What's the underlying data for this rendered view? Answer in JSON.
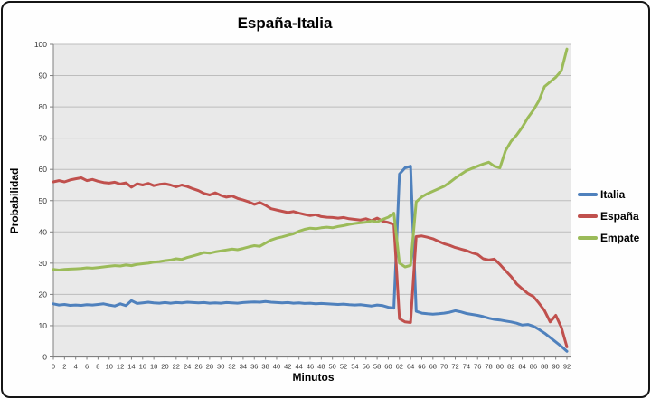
{
  "window": {
    "border_color": "#151515",
    "background": "#fefefe"
  },
  "chart_data": {
    "type": "line",
    "title": "España-Italia",
    "xlabel": "Minutos",
    "ylabel": "Probabilidad",
    "x_range": [
      0,
      92
    ],
    "x_tick_step": 2,
    "ylim": [
      0,
      100
    ],
    "y_tick_step": 10,
    "grid": "horizontal",
    "legend_position": "right",
    "plot_bg": "#E9E9E9",
    "grid_color": "#BDBDBD",
    "axis_color": "#808080",
    "tick_label_color": "#333333",
    "x": [
      0,
      1,
      2,
      3,
      4,
      5,
      6,
      7,
      8,
      9,
      10,
      11,
      12,
      13,
      14,
      15,
      16,
      17,
      18,
      19,
      20,
      21,
      22,
      23,
      24,
      25,
      26,
      27,
      28,
      29,
      30,
      31,
      32,
      33,
      34,
      35,
      36,
      37,
      38,
      39,
      40,
      41,
      42,
      43,
      44,
      45,
      46,
      47,
      48,
      49,
      50,
      51,
      52,
      53,
      54,
      55,
      56,
      57,
      58,
      59,
      60,
      61,
      62,
      63,
      64,
      65,
      66,
      67,
      68,
      69,
      70,
      71,
      72,
      73,
      74,
      75,
      76,
      77,
      78,
      79,
      80,
      81,
      82,
      83,
      84,
      85,
      86,
      87,
      88,
      89,
      90,
      91,
      92
    ],
    "series": [
      {
        "name": "Italia",
        "color": "#4F81BD",
        "values": [
          17,
          16.6,
          16.8,
          16.5,
          16.6,
          16.5,
          16.7,
          16.6,
          16.8,
          17,
          16.6,
          16.3,
          17,
          16.4,
          18,
          17.1,
          17.3,
          17.5,
          17.3,
          17.2,
          17.4,
          17.2,
          17.4,
          17.3,
          17.5,
          17.4,
          17.3,
          17.4,
          17.2,
          17.3,
          17.2,
          17.4,
          17.3,
          17.2,
          17.4,
          17.5,
          17.6,
          17.5,
          17.7,
          17.5,
          17.4,
          17.3,
          17.4,
          17.2,
          17.3,
          17.1,
          17.2,
          17,
          17.1,
          17,
          16.9,
          16.8,
          16.9,
          16.7,
          16.6,
          16.7,
          16.5,
          16.3,
          16.6,
          16.4,
          15.9,
          15.6,
          58.5,
          60.5,
          61,
          14.6,
          14,
          13.8,
          13.7,
          13.8,
          14,
          14.3,
          14.8,
          14.4,
          13.9,
          13.6,
          13.3,
          12.9,
          12.4,
          12,
          11.8,
          11.5,
          11.2,
          10.8,
          10.2,
          10.4,
          9.8,
          8.8,
          7.6,
          6.2,
          4.8,
          3.4,
          1.8
        ]
      },
      {
        "name": "España",
        "color": "#C0504D",
        "values": [
          56,
          56.4,
          56,
          56.6,
          57,
          57.3,
          56.4,
          56.8,
          56.2,
          55.8,
          55.6,
          55.9,
          55.3,
          55.7,
          54.3,
          55.4,
          55,
          55.5,
          54.8,
          55.2,
          55.4,
          55,
          54.4,
          55,
          54.5,
          53.8,
          53.2,
          52.3,
          51.8,
          52.5,
          51.7,
          51.1,
          51.5,
          50.7,
          50.2,
          49.6,
          48.8,
          49.4,
          48.5,
          47.4,
          47,
          46.6,
          46.2,
          46.5,
          46,
          45.6,
          45.2,
          45.5,
          44.9,
          44.7,
          44.6,
          44.4,
          44.6,
          44.2,
          44,
          43.8,
          44.2,
          43.6,
          44.4,
          43.4,
          43,
          42.4,
          12.2,
          11.2,
          11,
          38.5,
          38.7,
          38.3,
          37.8,
          37,
          36.2,
          35.7,
          35,
          34.5,
          34,
          33.3,
          32.8,
          31.4,
          31,
          31.3,
          29.6,
          27.6,
          25.7,
          23.4,
          21.8,
          20.3,
          19.3,
          17.2,
          14.8,
          11.2,
          13.3,
          9.5,
          3.2
        ]
      },
      {
        "name": "Empate",
        "color": "#9BBB59",
        "values": [
          28,
          27.8,
          28,
          28.1,
          28.2,
          28.3,
          28.5,
          28.4,
          28.6,
          28.8,
          29,
          29.2,
          29.1,
          29.4,
          29.2,
          29.6,
          29.8,
          30,
          30.3,
          30.5,
          30.8,
          31,
          31.4,
          31.2,
          31.8,
          32.3,
          32.8,
          33.4,
          33.2,
          33.6,
          33.9,
          34.2,
          34.5,
          34.3,
          34.7,
          35.2,
          35.6,
          35.4,
          36.4,
          37.4,
          38,
          38.4,
          38.9,
          39.4,
          40.2,
          40.8,
          41.2,
          41,
          41.3,
          41.5,
          41.3,
          41.7,
          42,
          42.4,
          42.7,
          42.9,
          43.1,
          43.5,
          43.2,
          44,
          44.7,
          46,
          30,
          28.8,
          29.3,
          49.6,
          51.2,
          52.2,
          53,
          53.8,
          54.6,
          55.8,
          57.2,
          58.4,
          59.6,
          60.3,
          61,
          61.7,
          62.3,
          61,
          60.5,
          66,
          69,
          71,
          73.5,
          76.5,
          79,
          82,
          86.5,
          88,
          89.5,
          91.5,
          98.5
        ]
      }
    ]
  }
}
